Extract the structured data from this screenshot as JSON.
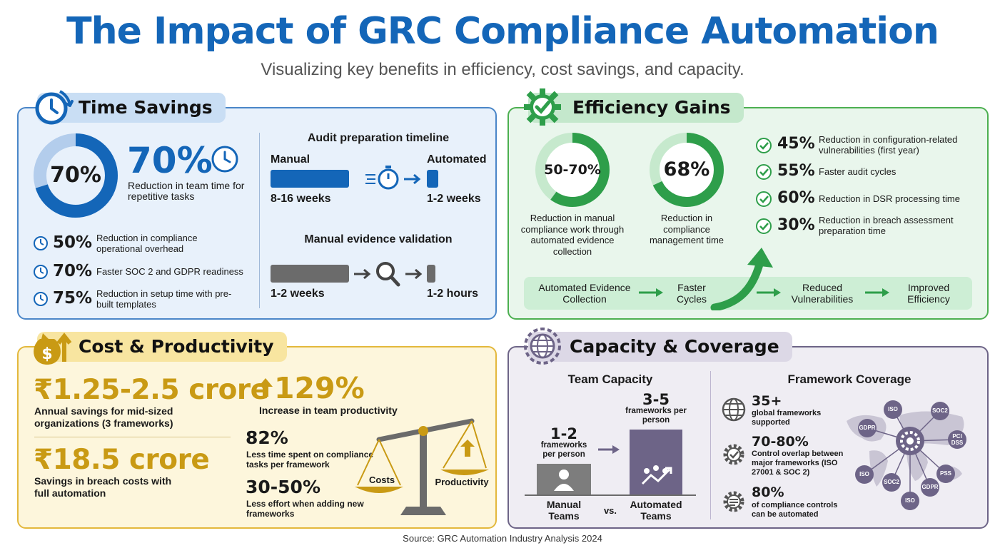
{
  "header": {
    "title": "The Impact of GRC Compliance Automation",
    "subtitle": "Visualizing key benefits in efficiency, cost savings, and capacity."
  },
  "time_savings": {
    "title": "Time Savings",
    "donut_label": "70%",
    "donut_fraction": 0.7,
    "big_stat": "70%",
    "big_stat_desc": "Reduction in team time for repetitive tasks",
    "items": [
      {
        "value": "50%",
        "text": "Reduction in compliance operational overhead"
      },
      {
        "value": "70%",
        "text": "Faster SOC 2 and GDPR readiness"
      },
      {
        "value": "75%",
        "text": "Reduction in setup time with pre-built templates"
      }
    ],
    "audit": {
      "title": "Audit preparation timeline",
      "manual_label": "Manual",
      "automated_label": "Automated",
      "manual_value": "8-16 weeks",
      "automated_value": "1-2 weeks"
    },
    "evidence": {
      "title": "Manual evidence validation",
      "manual_value": "1-2 weeks",
      "automated_value": "1-2 hours"
    }
  },
  "efficiency": {
    "title": "Efficiency Gains",
    "donut1_label": "50-70%",
    "donut1_fraction": 0.6,
    "donut1_desc": "Reduction in manual compliance work through automated evidence collection",
    "donut2_label": "68%",
    "donut2_fraction": 0.68,
    "donut2_desc": "Reduction in compliance management time",
    "items": [
      {
        "value": "45%",
        "text": "Reduction in configuration-related vulnerabilities (first year)"
      },
      {
        "value": "55%",
        "text": "Faster audit cycles"
      },
      {
        "value": "60%",
        "text": "Reduction in DSR processing time"
      },
      {
        "value": "30%",
        "text": "Reduction in breach assessment preparation time"
      }
    ],
    "flow": [
      "Automated Evidence Collection",
      "Faster Cycles",
      "Reduced Vulnerabilities",
      "Improved Efficiency"
    ]
  },
  "cost": {
    "title": "Cost & Productivity",
    "stat1": "₹1.25-2.5 crore",
    "stat1_desc": "Annual savings for mid-sized organizations (3 frameworks)",
    "stat2": "₹18.5 crore",
    "stat2_desc": "Savings in breach costs with full automation",
    "stat3": "129%",
    "stat3_desc": "Increase in team productivity",
    "stat4": "82%",
    "stat4_desc": "Less time spent on compliance tasks per framework",
    "stat5": "30-50%",
    "stat5_desc": "Less effort when adding new frameworks",
    "scale_left": "Costs",
    "scale_right": "Productivity"
  },
  "capacity": {
    "title": "Capacity & Coverage",
    "team_title": "Team Capacity",
    "manual_value": "1-2",
    "manual_unit": "frameworks per person",
    "manual_label": "Manual Teams",
    "automated_value": "3-5",
    "automated_unit": "frameworks per person",
    "automated_label": "Automated Teams",
    "vs": "vs.",
    "framework_title": "Framework Coverage",
    "items": [
      {
        "value": "35+",
        "text": "global frameworks supported"
      },
      {
        "value": "70-80%",
        "text": "Control overlap between major frameworks (ISO 27001 & SOC 2)"
      },
      {
        "value": "80%",
        "text": "of compliance controls can be automated"
      }
    ],
    "tags": [
      "ISO",
      "SOC2",
      "GDPR",
      "PCI DSS",
      "PSS",
      "GDPR",
      "ISO",
      "SOC2",
      "ISO"
    ]
  },
  "source": "Source: GRC Automation Industry Analysis 2024",
  "colors": {
    "blue": "#1466b8",
    "green": "#2e9e4a",
    "gold": "#c99a14",
    "purple": "#6d6487"
  }
}
